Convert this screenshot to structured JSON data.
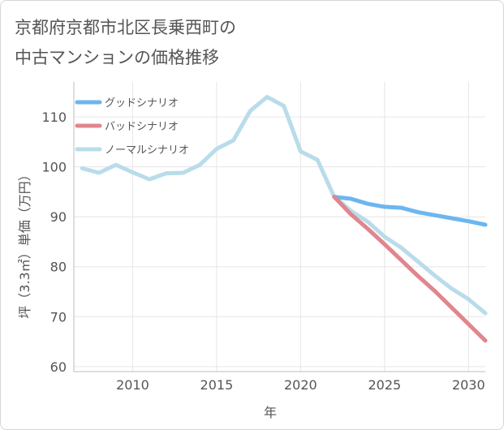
{
  "chart_data": {
    "type": "line",
    "title": "京都府京都市北区長乗西町の\n中古マンションの価格推移",
    "xlabel": "年",
    "ylabel": "坪（3.3㎡）単価（万円）",
    "xlim": [
      2006.5,
      2031
    ],
    "ylim": [
      59,
      117
    ],
    "x_ticks": [
      2010,
      2015,
      2020,
      2025,
      2030
    ],
    "y_ticks": [
      60,
      70,
      80,
      90,
      100,
      110
    ],
    "grid": {
      "x": true,
      "y": true
    },
    "legend_position": "top-left",
    "series": [
      {
        "name": "グッドシナリオ",
        "color": "#6cb6ef",
        "x": [
          2022,
          2023,
          2024,
          2025,
          2026,
          2027,
          2028,
          2029,
          2030,
          2031
        ],
        "y": [
          94,
          93.6,
          92.6,
          92,
          91.8,
          90.9,
          90.3,
          89.7,
          89.1,
          88.4
        ]
      },
      {
        "name": "バッドシナリオ",
        "color": "#e0868d",
        "x": [
          2022,
          2023,
          2024,
          2025,
          2026,
          2027,
          2028,
          2029,
          2030,
          2031
        ],
        "y": [
          94,
          90.5,
          87.6,
          84.5,
          81.3,
          78.1,
          75.1,
          71.8,
          68.5,
          65.2
        ]
      },
      {
        "name": "ノーマルシナリオ",
        "color": "#b9dcea",
        "x": [
          2007,
          2008,
          2009,
          2010,
          2011,
          2012,
          2013,
          2014,
          2015,
          2016,
          2017,
          2018,
          2019,
          2020,
          2021,
          2022,
          2023,
          2024,
          2025,
          2026,
          2027,
          2028,
          2029,
          2030,
          2031
        ],
        "y": [
          99.7,
          98.8,
          100.4,
          98.9,
          97.5,
          98.7,
          98.8,
          100.4,
          103.6,
          105.3,
          111.2,
          114.0,
          112.2,
          103.1,
          101.4,
          94.0,
          91.2,
          89.0,
          86.0,
          83.8,
          81.0,
          78.2,
          75.6,
          73.5,
          70.7
        ]
      }
    ]
  }
}
